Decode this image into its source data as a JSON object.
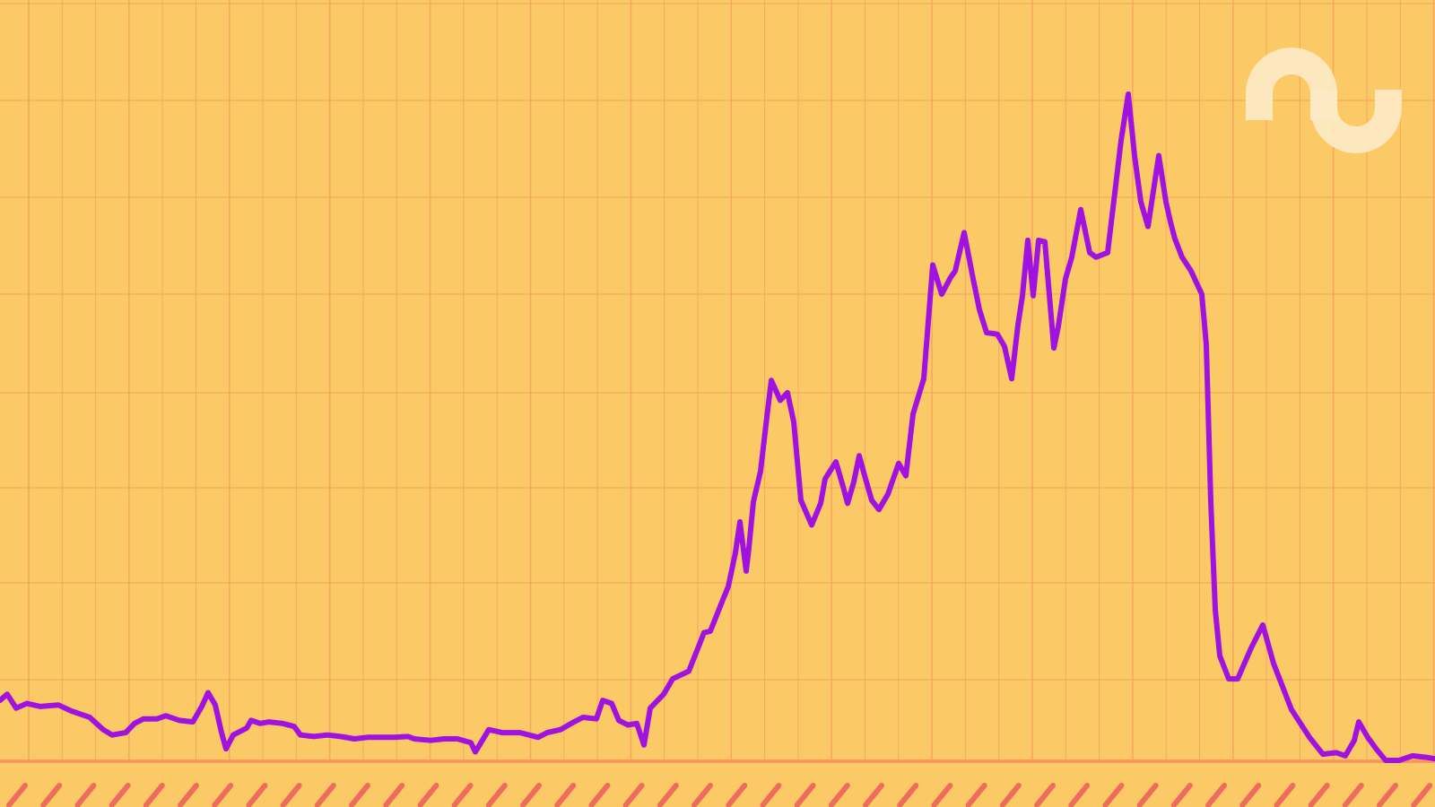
{
  "colors": {
    "background": "#fbca66",
    "grid": "#f5a35f",
    "baseline": "#f59a5a",
    "line": "#a012e0",
    "tick_marks": "#ef6b5e",
    "logo": "#fde9c4"
  },
  "logo": {
    "icon": "stylized-n-u-logo-icon"
  },
  "chart_data": {
    "type": "line",
    "title": "",
    "xlabel": "",
    "ylabel": "",
    "grid": true,
    "legend": "none",
    "xlim": [
      0,
      1600
    ],
    "ylim": [
      0,
      100
    ],
    "series": [
      {
        "values": [
          [
            0,
            7.8
          ],
          [
            8,
            8.6
          ],
          [
            18,
            6.8
          ],
          [
            30,
            7.4
          ],
          [
            45,
            7.0
          ],
          [
            65,
            7.2
          ],
          [
            80,
            6.4
          ],
          [
            100,
            5.6
          ],
          [
            115,
            4.0
          ],
          [
            125,
            3.3
          ],
          [
            140,
            3.6
          ],
          [
            150,
            4.8
          ],
          [
            160,
            5.4
          ],
          [
            175,
            5.4
          ],
          [
            185,
            5.8
          ],
          [
            200,
            5.2
          ],
          [
            215,
            5.0
          ],
          [
            225,
            7.0
          ],
          [
            232,
            8.8
          ],
          [
            240,
            7.2
          ],
          [
            247,
            3.6
          ],
          [
            252,
            1.5
          ],
          [
            260,
            3.3
          ],
          [
            275,
            4.2
          ],
          [
            280,
            5.2
          ],
          [
            290,
            4.8
          ],
          [
            300,
            5.0
          ],
          [
            315,
            4.8
          ],
          [
            328,
            4.4
          ],
          [
            335,
            3.3
          ],
          [
            350,
            3.1
          ],
          [
            365,
            3.3
          ],
          [
            380,
            3.1
          ],
          [
            395,
            2.8
          ],
          [
            410,
            3.0
          ],
          [
            425,
            3.0
          ],
          [
            440,
            3.0
          ],
          [
            455,
            3.1
          ],
          [
            462,
            2.8
          ],
          [
            480,
            2.6
          ],
          [
            495,
            2.8
          ],
          [
            510,
            2.8
          ],
          [
            525,
            2.3
          ],
          [
            530,
            1.1
          ],
          [
            545,
            4.0
          ],
          [
            560,
            3.6
          ],
          [
            580,
            3.6
          ],
          [
            600,
            3.0
          ],
          [
            610,
            3.6
          ],
          [
            625,
            4.0
          ],
          [
            640,
            5.0
          ],
          [
            650,
            5.6
          ],
          [
            665,
            5.4
          ],
          [
            672,
            7.8
          ],
          [
            682,
            7.4
          ],
          [
            690,
            5.2
          ],
          [
            700,
            4.6
          ],
          [
            710,
            4.8
          ],
          [
            718,
            2.0
          ],
          [
            725,
            6.8
          ],
          [
            740,
            8.6
          ],
          [
            750,
            10.6
          ],
          [
            768,
            11.6
          ],
          [
            785,
            16.6
          ],
          [
            792,
            16.8
          ],
          [
            805,
            20.6
          ],
          [
            812,
            22.6
          ],
          [
            820,
            27.0
          ],
          [
            825,
            31.0
          ],
          [
            832,
            24.6
          ],
          [
            835,
            27.6
          ],
          [
            840,
            33.6
          ],
          [
            848,
            37.6
          ],
          [
            855,
            44.6
          ],
          [
            860,
            49.4
          ],
          [
            870,
            46.8
          ],
          [
            878,
            47.8
          ],
          [
            885,
            44.0
          ],
          [
            893,
            33.8
          ],
          [
            905,
            30.6
          ],
          [
            915,
            33.4
          ],
          [
            920,
            36.6
          ],
          [
            932,
            38.8
          ],
          [
            940,
            35.6
          ],
          [
            945,
            33.4
          ],
          [
            952,
            36.2
          ],
          [
            958,
            39.6
          ],
          [
            965,
            36.6
          ],
          [
            972,
            33.8
          ],
          [
            980,
            32.6
          ],
          [
            990,
            34.6
          ],
          [
            1002,
            38.6
          ],
          [
            1010,
            37.0
          ],
          [
            1018,
            45.0
          ],
          [
            1030,
            49.6
          ],
          [
            1040,
            64.4
          ],
          [
            1050,
            60.6
          ],
          [
            1060,
            62.8
          ],
          [
            1065,
            63.6
          ],
          [
            1075,
            68.6
          ],
          [
            1085,
            62.6
          ],
          [
            1092,
            58.6
          ],
          [
            1100,
            55.6
          ],
          [
            1112,
            55.4
          ],
          [
            1120,
            53.8
          ],
          [
            1128,
            49.6
          ],
          [
            1135,
            56.6
          ],
          [
            1140,
            60.4
          ],
          [
            1146,
            67.6
          ],
          [
            1152,
            60.4
          ],
          [
            1158,
            67.6
          ],
          [
            1165,
            67.4
          ],
          [
            1175,
            53.6
          ],
          [
            1180,
            56.4
          ],
          [
            1188,
            62.6
          ],
          [
            1195,
            65.4
          ],
          [
            1205,
            71.6
          ],
          [
            1215,
            66.0
          ],
          [
            1222,
            65.4
          ],
          [
            1235,
            66.0
          ],
          [
            1250,
            80.6
          ],
          [
            1258,
            86.6
          ],
          [
            1265,
            78.6
          ],
          [
            1272,
            72.6
          ],
          [
            1280,
            69.4
          ],
          [
            1292,
            78.6
          ],
          [
            1300,
            72.6
          ],
          [
            1305,
            70.0
          ],
          [
            1310,
            67.8
          ],
          [
            1318,
            65.4
          ],
          [
            1328,
            63.6
          ],
          [
            1340,
            60.6
          ],
          [
            1345,
            54.0
          ],
          [
            1350,
            33.6
          ],
          [
            1355,
            19.6
          ],
          [
            1360,
            13.6
          ],
          [
            1370,
            10.6
          ],
          [
            1380,
            10.6
          ],
          [
            1395,
            14.6
          ],
          [
            1408,
            17.6
          ],
          [
            1420,
            12.6
          ],
          [
            1440,
            6.6
          ],
          [
            1460,
            3.0
          ],
          [
            1475,
            0.8
          ],
          [
            1490,
            1.0
          ],
          [
            1500,
            0.6
          ],
          [
            1510,
            2.6
          ],
          [
            1515,
            5.0
          ],
          [
            1525,
            3.0
          ],
          [
            1535,
            1.4
          ],
          [
            1545,
            0.0
          ],
          [
            1560,
            0.0
          ],
          [
            1575,
            0.6
          ],
          [
            1590,
            0.4
          ],
          [
            1600,
            0.2
          ]
        ]
      }
    ]
  }
}
